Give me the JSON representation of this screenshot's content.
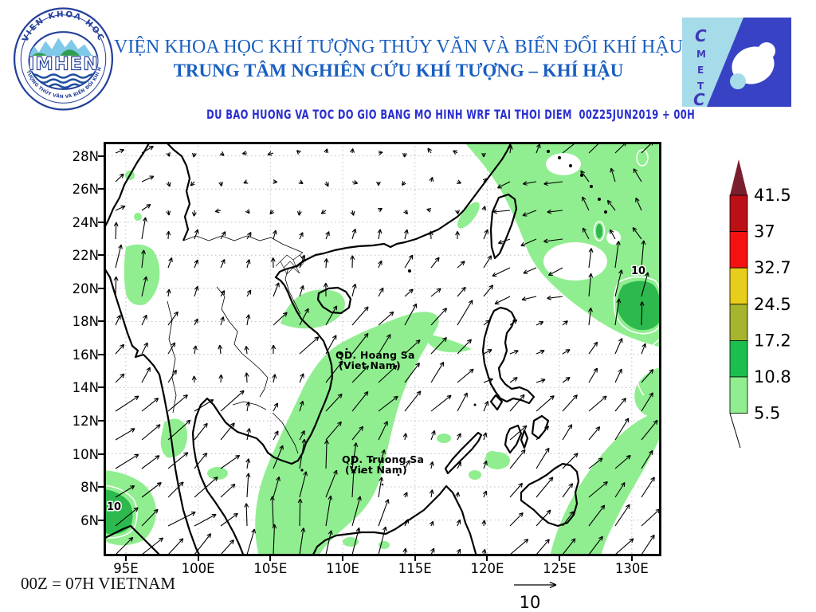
{
  "header": {
    "institute_line1": "VIỆN KHOA HỌC KHÍ TƯỢNG THỦY VĂN VÀ BIẾN ĐỔI KHÍ HẬU",
    "institute_line2": "TRUNG TÂM NGHIÊN CỨU KHÍ TƯỢNG – KHÍ HẬU",
    "subtitle": "DU BAO HUONG VA TOC DO GIO BANG MO HINH WRF TAI THOI DIEM  00Z25JUN2019 + 00H",
    "title_color": "#1a5fc0",
    "subtitle_color": "#2a2fd0",
    "logo_left": {
      "name": "IMHEN",
      "arc_top": "VIEN KHOA HOC",
      "arc_bottom": "KHÍ TƯỢNG THỦY VĂN VÀ BIẾN ĐỔI KHÍ HẬU"
    },
    "logo_right": {
      "letters": [
        "C",
        "M",
        "E",
        "T",
        "C"
      ]
    }
  },
  "map": {
    "lat_ticks": [
      "28N",
      "26N",
      "24N",
      "22N",
      "20N",
      "18N",
      "16N",
      "14N",
      "12N",
      "10N",
      "8N",
      "6N"
    ],
    "lon_ticks": [
      "95E",
      "100E",
      "105E",
      "110E",
      "115E",
      "120E",
      "125E",
      "130E"
    ],
    "labels": {
      "hoang_sa_line1": "QD. Hoang Sa",
      "hoang_sa_line2": "(Viet Nam)",
      "truong_sa_line1": "QD. Truong Sa",
      "truong_sa_line2": "(Viet Nam)",
      "contour_label_ne": "10",
      "contour_label_sw": "10"
    },
    "shade_light": "#90ee90",
    "shade_dark": "#2db94e"
  },
  "legend": {
    "values": [
      "41.5",
      "37",
      "32.7",
      "24.5",
      "17.2",
      "10.8",
      "5.5"
    ],
    "segment_colors": [
      "#bb1016",
      "#f31111",
      "#e8ce1c",
      "#a6b42e",
      "#1cbe50",
      "#90ee90"
    ],
    "arrow_color": "#7a1f2e"
  },
  "footer": {
    "time_note": "00Z = 07H VIETNAM",
    "ref_arrow_label": "10"
  }
}
